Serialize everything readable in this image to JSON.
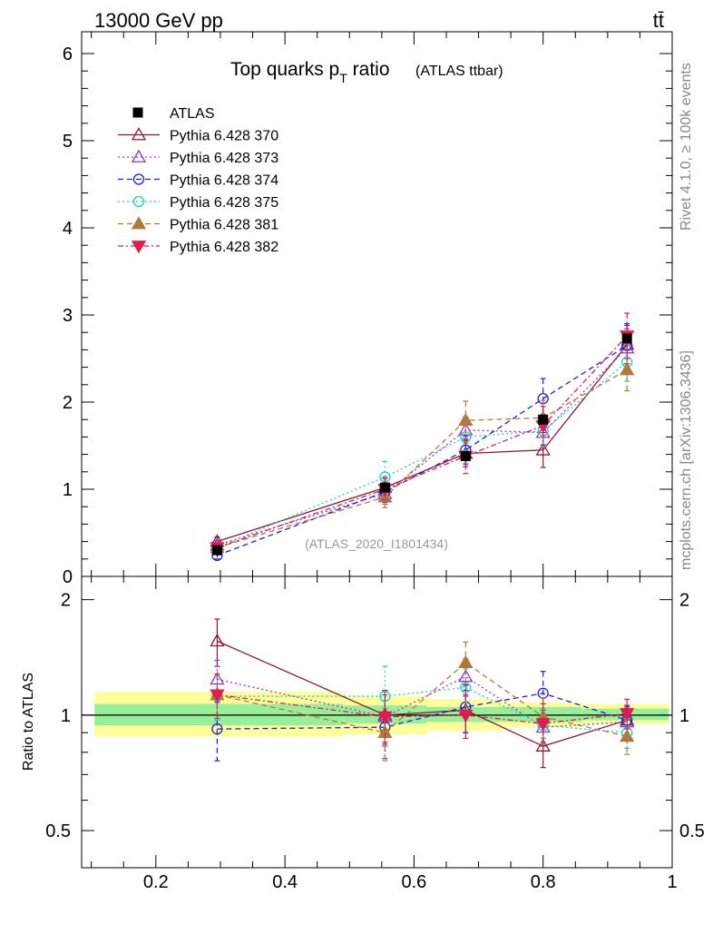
{
  "header": {
    "energy_label": "13000 GeV pp",
    "process_label": "tt̄"
  },
  "side_labels": {
    "rivet": "Rivet 4.1.0, ≥ 100k events",
    "mcplots": "mcplots.cern.ch [arXiv:1306.3436]"
  },
  "chart_data": [
    {
      "panel": "main",
      "type": "line",
      "title_main": "Top quarks p",
      "title_sub": "T",
      "title_tail": " ratio",
      "title_small": "(ATLAS ttbar)",
      "analysis_id": "(ATLAS_2020_I1801434)",
      "xlim": [
        0.085,
        1.0
      ],
      "ylim": [
        0,
        6.25
      ],
      "yticks": [
        0,
        1,
        2,
        3,
        4,
        5,
        6
      ],
      "ytick_labels": [
        "0",
        "1",
        "2",
        "3",
        "4",
        "5",
        "6"
      ],
      "x": [
        0.295,
        0.555,
        0.68,
        0.8,
        0.93
      ],
      "data": {
        "name": "ATLAS",
        "values": [
          0.3,
          1.02,
          1.38,
          1.8,
          2.73
        ]
      },
      "series": [
        {
          "name": "Pythia 6.428 370",
          "color": "#8b1a2b",
          "marker": "triangle-up-open",
          "dash": "solid",
          "values": [
            0.4,
            1.02,
            1.41,
            1.45,
            2.66
          ],
          "errors": [
            0.05,
            0.12,
            0.15,
            0.2,
            0.22
          ]
        },
        {
          "name": "Pythia 6.428 373",
          "color": "#9932cc",
          "marker": "triangle-up-open",
          "dash": "dotted",
          "values": [
            0.36,
            0.95,
            1.68,
            1.65,
            2.62
          ],
          "errors": [
            0.05,
            0.12,
            0.15,
            0.18,
            0.22
          ]
        },
        {
          "name": "Pythia 6.428 374",
          "color": "#1f1fd9",
          "marker": "circle-open",
          "dash": "dashed",
          "values": [
            0.24,
            0.97,
            1.45,
            2.04,
            2.65
          ],
          "errors": [
            0.04,
            0.12,
            0.16,
            0.23,
            0.25
          ]
        },
        {
          "name": "Pythia 6.428 375",
          "color": "#1ad1c8",
          "marker": "circle-open",
          "dash": "dotted",
          "values": [
            0.33,
            1.14,
            1.6,
            1.67,
            2.46
          ],
          "errors": [
            0.05,
            0.18,
            0.15,
            0.18,
            0.22
          ]
        },
        {
          "name": "Pythia 6.428 381",
          "color": "#b07a3c",
          "marker": "triangle-up-filled",
          "dash": "dashed",
          "values": [
            0.33,
            0.91,
            1.79,
            1.82,
            2.37
          ],
          "errors": [
            0.05,
            0.12,
            0.22,
            0.2,
            0.24
          ]
        },
        {
          "name": "Pythia 6.428 382",
          "color": "#dc1e50",
          "marker": "triangle-down-filled",
          "dash": "dashdot",
          "values": [
            0.33,
            1.0,
            1.38,
            1.73,
            2.76
          ],
          "errors": [
            0.05,
            0.12,
            0.2,
            0.22,
            0.26
          ]
        }
      ]
    },
    {
      "panel": "ratio",
      "type": "line",
      "ylabel": "Ratio to ATLAS",
      "xlim": [
        0.085,
        1.0
      ],
      "ylim": [
        0.4,
        2.3
      ],
      "log_y": true,
      "yticks": [
        0.5,
        1,
        2
      ],
      "ytick_labels": [
        "0.5",
        "1",
        "2"
      ],
      "xticks": [
        0.2,
        0.4,
        0.6,
        0.8,
        1.0
      ],
      "xtick_labels": [
        "0.2",
        "0.4",
        "0.6",
        "0.8",
        "1"
      ],
      "x": [
        0.295,
        0.555,
        0.68,
        0.8,
        0.93
      ],
      "bins": [
        [
          0.105,
          0.49
        ],
        [
          0.49,
          0.62
        ],
        [
          0.62,
          0.74
        ],
        [
          0.74,
          0.86
        ],
        [
          0.86,
          0.995
        ]
      ],
      "band_inner": [
        [
          0.94,
          1.07
        ],
        [
          0.95,
          1.06
        ],
        [
          0.96,
          1.05
        ],
        [
          0.96,
          1.05
        ],
        [
          0.97,
          1.04
        ]
      ],
      "band_outer": [
        [
          0.88,
          1.15
        ],
        [
          0.89,
          1.12
        ],
        [
          0.91,
          1.1
        ],
        [
          0.93,
          1.08
        ],
        [
          0.95,
          1.07
        ]
      ],
      "series": [
        {
          "name": "Pythia 6.428 370",
          "values": [
            1.56,
            1.0,
            1.03,
            0.83,
            0.97
          ],
          "errors": [
            0.22,
            0.16,
            0.13,
            0.1,
            0.08
          ]
        },
        {
          "name": "Pythia 6.428 373",
          "values": [
            1.24,
            0.99,
            1.26,
            0.93,
            0.96
          ],
          "errors": [
            0.15,
            0.16,
            0.14,
            0.1,
            0.08
          ]
        },
        {
          "name": "Pythia 6.428 374",
          "values": [
            0.92,
            0.93,
            1.05,
            1.14,
            0.97
          ],
          "errors": [
            0.16,
            0.16,
            0.15,
            0.16,
            0.09
          ]
        },
        {
          "name": "Pythia 6.428 375",
          "values": [
            1.12,
            1.12,
            1.18,
            0.94,
            0.9
          ],
          "errors": [
            0.15,
            0.22,
            0.14,
            0.1,
            0.08
          ]
        },
        {
          "name": "Pythia 6.428 381",
          "values": [
            1.13,
            0.9,
            1.37,
            0.99,
            0.88
          ],
          "errors": [
            0.15,
            0.14,
            0.18,
            0.12,
            0.09
          ]
        },
        {
          "name": "Pythia 6.428 382",
          "values": [
            1.13,
            0.99,
            1.0,
            0.95,
            1.01
          ],
          "errors": [
            0.15,
            0.14,
            0.13,
            0.12,
            0.09
          ]
        }
      ]
    }
  ]
}
